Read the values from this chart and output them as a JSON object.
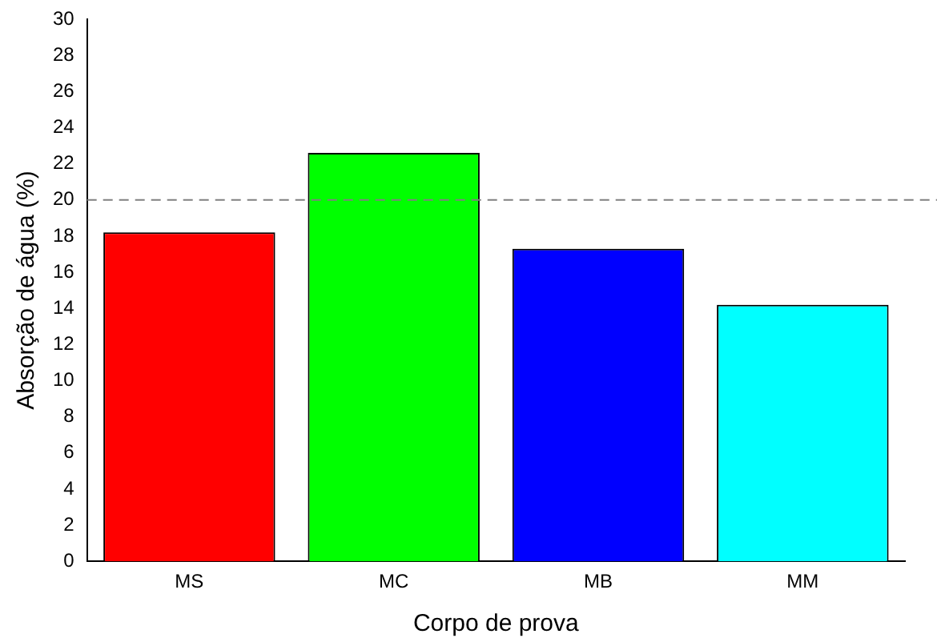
{
  "chart_data": {
    "type": "bar",
    "xlabel": "Corpo de prova",
    "ylabel": "Absorção de água (%)",
    "categories": [
      "MS",
      "MC",
      "MB",
      "MM"
    ],
    "values": [
      18.2,
      22.6,
      17.3,
      14.2
    ],
    "colors": [
      "#ff0000",
      "#00ff00",
      "#0000ff",
      "#00ffff"
    ],
    "ylim": [
      0,
      30
    ],
    "yticks": [
      0,
      2,
      4,
      6,
      8,
      10,
      12,
      14,
      16,
      18,
      20,
      22,
      24,
      26,
      28,
      30
    ],
    "ref_lines": [
      {
        "axis": "y",
        "value": 20,
        "color": "#808080",
        "line_style": "dashed"
      }
    ],
    "grid": false,
    "legend": false
  }
}
